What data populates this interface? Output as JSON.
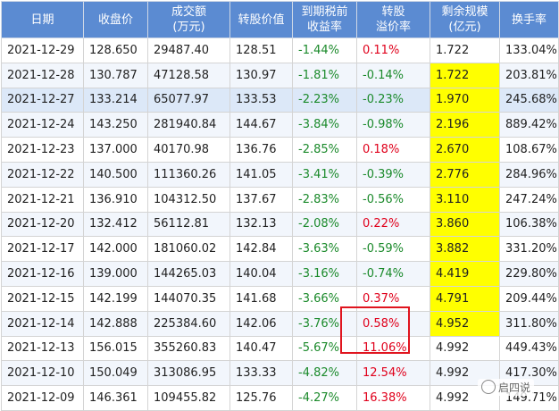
{
  "columns": [
    {
      "label": "日期"
    },
    {
      "label": "收盘价"
    },
    {
      "label": "成交额\n(万元)"
    },
    {
      "label": "转股价值"
    },
    {
      "label": "到期税前\n收益率"
    },
    {
      "label": "转股\n溢价率"
    },
    {
      "label": "剩余规模\n(亿元)"
    },
    {
      "label": "换手率"
    }
  ],
  "rows": [
    {
      "date": "2021-12-29",
      "close": "128.650",
      "amount": "29487.40",
      "conv_value": "128.51",
      "ytm": "-1.44%",
      "premium": "0.11%",
      "premium_color": "red",
      "remaining": "1.722",
      "remaining_hl": false,
      "turnover": "133.04%"
    },
    {
      "date": "2021-12-28",
      "close": "130.787",
      "amount": "47128.58",
      "conv_value": "130.97",
      "ytm": "-1.81%",
      "premium": "-0.14%",
      "premium_color": "green",
      "remaining": "1.722",
      "remaining_hl": true,
      "turnover": "203.81%"
    },
    {
      "date": "2021-12-27",
      "close": "133.214",
      "amount": "65077.97",
      "conv_value": "133.53",
      "ytm": "-2.23%",
      "premium": "-0.23%",
      "premium_color": "green",
      "remaining": "1.970",
      "remaining_hl": true,
      "turnover": "245.68%"
    },
    {
      "date": "2021-12-24",
      "close": "143.250",
      "amount": "281940.84",
      "conv_value": "144.67",
      "ytm": "-3.84%",
      "premium": "-0.98%",
      "premium_color": "green",
      "remaining": "2.196",
      "remaining_hl": true,
      "turnover": "889.42%"
    },
    {
      "date": "2021-12-23",
      "close": "137.000",
      "amount": "40170.98",
      "conv_value": "136.76",
      "ytm": "-2.85%",
      "premium": "0.18%",
      "premium_color": "red",
      "remaining": "2.670",
      "remaining_hl": true,
      "turnover": "108.67%"
    },
    {
      "date": "2021-12-22",
      "close": "140.500",
      "amount": "111360.26",
      "conv_value": "141.05",
      "ytm": "-3.41%",
      "premium": "-0.39%",
      "premium_color": "green",
      "remaining": "2.776",
      "remaining_hl": true,
      "turnover": "284.96%"
    },
    {
      "date": "2021-12-21",
      "close": "136.910",
      "amount": "104312.50",
      "conv_value": "137.67",
      "ytm": "-2.83%",
      "premium": "-0.56%",
      "premium_color": "green",
      "remaining": "3.110",
      "remaining_hl": true,
      "turnover": "247.24%"
    },
    {
      "date": "2021-12-20",
      "close": "132.412",
      "amount": "56112.81",
      "conv_value": "132.13",
      "ytm": "-2.08%",
      "premium": "0.22%",
      "premium_color": "red",
      "remaining": "3.860",
      "remaining_hl": true,
      "turnover": "106.38%"
    },
    {
      "date": "2021-12-17",
      "close": "142.000",
      "amount": "181060.02",
      "conv_value": "142.84",
      "ytm": "-3.63%",
      "premium": "-0.59%",
      "premium_color": "green",
      "remaining": "3.882",
      "remaining_hl": true,
      "turnover": "331.20%"
    },
    {
      "date": "2021-12-16",
      "close": "139.000",
      "amount": "144265.03",
      "conv_value": "140.04",
      "ytm": "-3.16%",
      "premium": "-0.74%",
      "premium_color": "green",
      "remaining": "4.419",
      "remaining_hl": true,
      "turnover": "229.80%"
    },
    {
      "date": "2021-12-15",
      "close": "142.199",
      "amount": "144070.35",
      "conv_value": "141.68",
      "ytm": "-3.66%",
      "premium": "0.37%",
      "premium_color": "red",
      "remaining": "4.791",
      "remaining_hl": true,
      "turnover": "209.44%"
    },
    {
      "date": "2021-12-14",
      "close": "142.888",
      "amount": "225384.60",
      "conv_value": "142.06",
      "ytm": "-3.76%",
      "premium": "0.58%",
      "premium_color": "red",
      "remaining": "4.952",
      "remaining_hl": true,
      "turnover": "311.80%"
    },
    {
      "date": "2021-12-13",
      "close": "156.015",
      "amount": "355260.83",
      "conv_value": "140.47",
      "ytm": "-5.67%",
      "premium": "11.06%",
      "premium_color": "red",
      "remaining": "4.992",
      "remaining_hl": false,
      "turnover": "449.43%"
    },
    {
      "date": "2021-12-10",
      "close": "150.049",
      "amount": "313086.95",
      "conv_value": "133.33",
      "ytm": "-4.82%",
      "premium": "12.54%",
      "premium_color": "red",
      "remaining": "4.992",
      "remaining_hl": false,
      "turnover": "417.30%"
    },
    {
      "date": "2021-12-09",
      "close": "146.361",
      "amount": "109455.82",
      "conv_value": "125.76",
      "ytm": "-4.27%",
      "premium": "16.38%",
      "premium_color": "red",
      "remaining": "4.992",
      "remaining_hl": false,
      "turnover": "149.71%"
    }
  ],
  "selected_row": 2,
  "watermark": "启四说",
  "colors": {
    "header": "#5b8bd2",
    "highlight": "#ffff00",
    "positive": "#e0001b",
    "negative": "#1b8a2b",
    "box": "#e0141e"
  }
}
